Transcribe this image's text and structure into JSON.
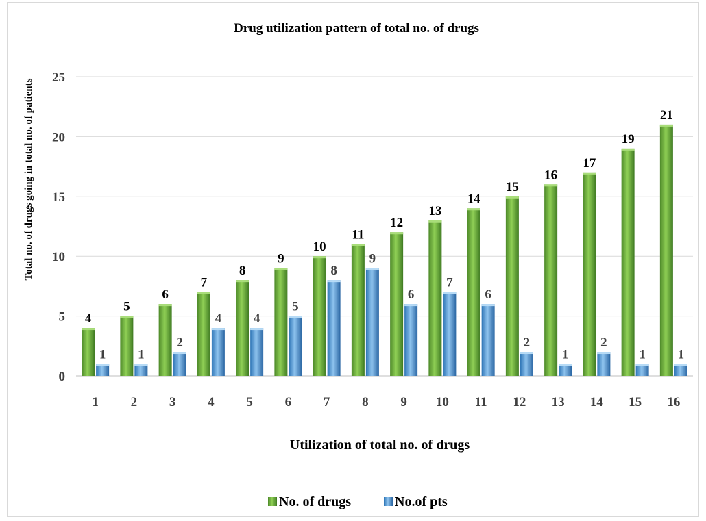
{
  "chart_data": {
    "type": "bar",
    "title": "Drug utilization pattern of total no. of drugs",
    "xlabel": "Utilization of total no. of drugs",
    "ylabel": "Total no. of drugs going in total no. of patients",
    "categories": [
      "1",
      "2",
      "3",
      "4",
      "5",
      "6",
      "7",
      "8",
      "9",
      "10",
      "11",
      "12",
      "13",
      "14",
      "15",
      "16"
    ],
    "series": [
      {
        "name": "No. of drugs",
        "color": "#70ad47",
        "values": [
          4,
          5,
          6,
          7,
          8,
          9,
          10,
          11,
          12,
          13,
          14,
          15,
          16,
          17,
          19,
          21
        ]
      },
      {
        "name": "No.of pts",
        "color": "#5b9bd5",
        "values": [
          1,
          1,
          2,
          4,
          4,
          5,
          8,
          9,
          6,
          7,
          6,
          2,
          1,
          2,
          1,
          1
        ]
      }
    ],
    "ylim": [
      0,
      25
    ],
    "yticks": [
      0,
      5,
      10,
      15,
      20,
      25
    ],
    "grid": true,
    "legend_position": "bottom"
  }
}
